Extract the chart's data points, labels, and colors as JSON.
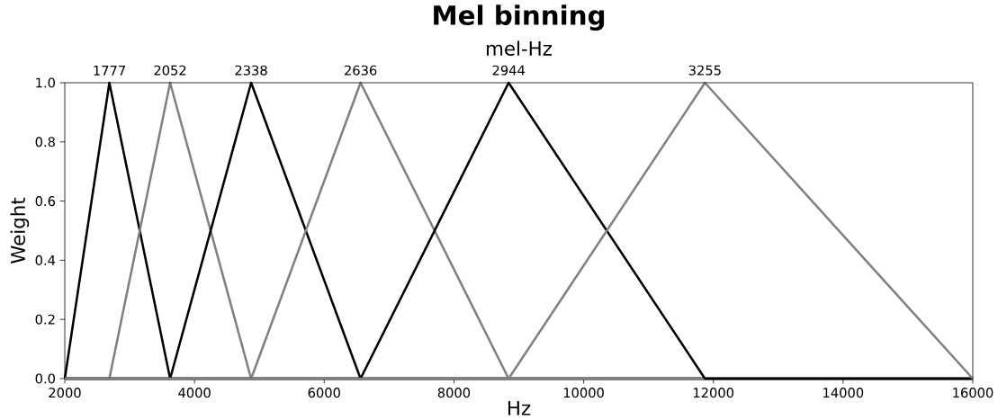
{
  "chart_data": {
    "type": "line",
    "title": "Mel binning",
    "xlabel": "Hz",
    "ylabel": "Weight",
    "x2label": "mel-Hz",
    "xlim": [
      2000,
      16000
    ],
    "ylim": [
      0,
      1
    ],
    "xticks": [
      2000,
      4000,
      6000,
      8000,
      10000,
      12000,
      14000,
      16000
    ],
    "yticks": [
      {
        "value": 0,
        "label": "0.0"
      },
      {
        "value": 0.2,
        "label": "0.2"
      },
      {
        "value": 0.4,
        "label": "0.4"
      },
      {
        "value": 0.6,
        "label": "0.6"
      },
      {
        "value": 0.8,
        "label": "0.8"
      },
      {
        "value": 1,
        "label": "1.0"
      }
    ],
    "annotations": [
      {
        "text": "1777",
        "x": 2687,
        "y": 1
      },
      {
        "text": "2052",
        "x": 3624,
        "y": 1
      },
      {
        "text": "2338",
        "x": 4873,
        "y": 1
      },
      {
        "text": "2636",
        "x": 6560,
        "y": 1
      },
      {
        "text": "2944",
        "x": 8843,
        "y": 1
      },
      {
        "text": "3255",
        "x": 11870,
        "y": 1
      }
    ],
    "series": [
      {
        "color": "#000000",
        "x": [
          2000,
          2687,
          3624,
          16000
        ],
        "values": [
          0,
          1,
          0,
          0
        ]
      },
      {
        "color": "#808080",
        "x": [
          2000,
          2687,
          3624,
          4873,
          16000
        ],
        "values": [
          0,
          0,
          1,
          0,
          0
        ]
      },
      {
        "color": "#000000",
        "x": [
          2000,
          3624,
          4873,
          6560,
          16000
        ],
        "values": [
          0,
          0,
          1,
          0,
          0
        ]
      },
      {
        "color": "#808080",
        "x": [
          2000,
          4873,
          6560,
          8843,
          16000
        ],
        "values": [
          0,
          0,
          1,
          0,
          0
        ]
      },
      {
        "color": "#000000",
        "x": [
          2000,
          6560,
          8843,
          11870,
          16000
        ],
        "values": [
          0,
          0,
          1,
          0,
          0
        ]
      },
      {
        "color": "#808080",
        "x": [
          2000,
          8843,
          11870,
          16000
        ],
        "values": [
          0,
          0,
          1,
          0
        ]
      }
    ]
  }
}
